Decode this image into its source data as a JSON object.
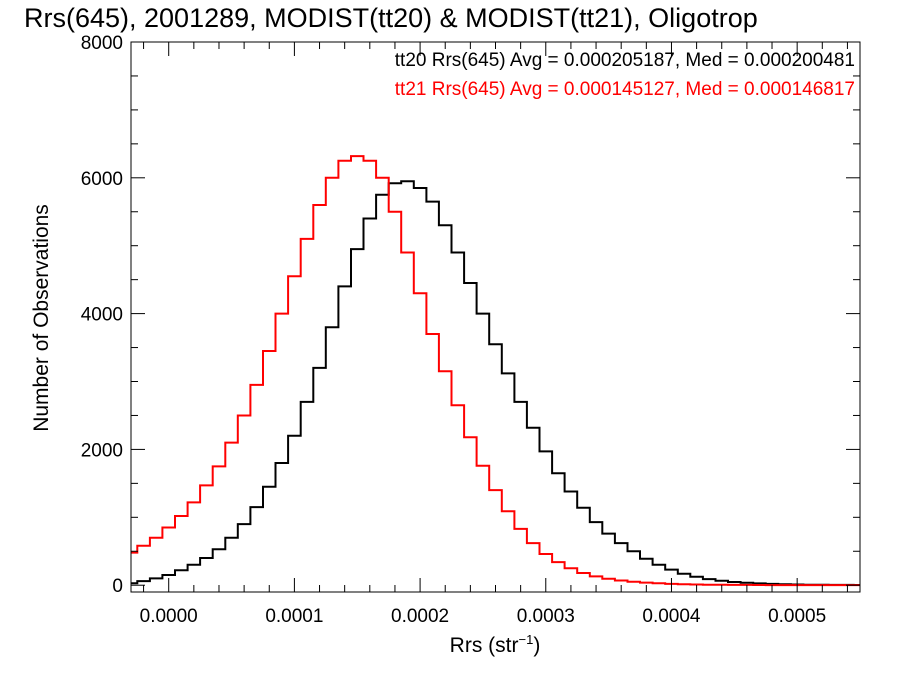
{
  "chart_data": {
    "type": "line",
    "title": "Rrs(645), 2001289, MODIST(tt20) & MODIST(tt21), Oligotrop",
    "xlabel": "Rrs (str",
    "xlabel_sup": "−1",
    "xlabel_close": ")",
    "ylabel": "Number of Observations",
    "xlim": [
      -3e-05,
      0.00055
    ],
    "ylim": [
      -100,
      8000
    ],
    "xticks": [
      0.0,
      0.0001,
      0.0002,
      0.0003,
      0.0004,
      0.0005
    ],
    "xtick_labels": [
      "0.0000",
      "0.0001",
      "0.0002",
      "0.0003",
      "0.0004",
      "0.0005"
    ],
    "yticks": [
      0,
      2000,
      4000,
      6000,
      8000
    ],
    "ytick_labels": [
      "0",
      "2000",
      "4000",
      "6000",
      "8000"
    ],
    "style": "histogram-step",
    "legend_placement": "top-right",
    "series": [
      {
        "name": "tt20",
        "label": "tt20 Rrs(645) Avg = 0.000205187, Med = 0.000200481",
        "color": "#000000",
        "x": [
          -3e-05,
          -2e-05,
          -1e-05,
          0.0,
          1e-05,
          2e-05,
          3e-05,
          4e-05,
          5e-05,
          6e-05,
          7e-05,
          8e-05,
          9e-05,
          0.0001,
          0.00011,
          0.00012,
          0.00013,
          0.00014,
          0.00015,
          0.00016,
          0.00017,
          0.00018,
          0.00019,
          0.0002,
          0.00021,
          0.00022,
          0.00023,
          0.00024,
          0.00025,
          0.00026,
          0.00027,
          0.00028,
          0.00029,
          0.0003,
          0.00031,
          0.00032,
          0.00033,
          0.00034,
          0.00035,
          0.00036,
          0.00037,
          0.00038,
          0.00039,
          0.0004,
          0.00041,
          0.00042,
          0.00043,
          0.00044,
          0.00045,
          0.00046,
          0.00047,
          0.00048,
          0.00049,
          0.0005,
          0.00051,
          0.00052,
          0.00053,
          0.00054,
          0.00055
        ],
        "y": [
          30,
          60,
          100,
          150,
          220,
          300,
          400,
          530,
          700,
          900,
          1150,
          1450,
          1800,
          2200,
          2700,
          3200,
          3800,
          4400,
          4950,
          5400,
          5750,
          5920,
          5950,
          5850,
          5650,
          5300,
          4900,
          4450,
          4000,
          3550,
          3120,
          2700,
          2320,
          1970,
          1650,
          1380,
          1140,
          930,
          760,
          620,
          500,
          390,
          300,
          230,
          170,
          125,
          90,
          65,
          48,
          36,
          26,
          19,
          14,
          10,
          8,
          6,
          5,
          4,
          3
        ]
      },
      {
        "name": "tt21",
        "label": "tt21 Rrs(645) Avg = 0.000145127, Med = 0.000146817",
        "color": "#ff0000",
        "x": [
          -3e-05,
          -2e-05,
          -1e-05,
          0.0,
          1e-05,
          2e-05,
          3e-05,
          4e-05,
          5e-05,
          6e-05,
          7e-05,
          8e-05,
          9e-05,
          0.0001,
          0.00011,
          0.00012,
          0.00013,
          0.00014,
          0.00015,
          0.00016,
          0.00017,
          0.00018,
          0.00019,
          0.0002,
          0.00021,
          0.00022,
          0.00023,
          0.00024,
          0.00025,
          0.00026,
          0.00027,
          0.00028,
          0.00029,
          0.0003,
          0.00031,
          0.00032,
          0.00033,
          0.00034,
          0.00035,
          0.00036,
          0.00037,
          0.00038,
          0.00039,
          0.0004,
          0.00041,
          0.00042,
          0.00043,
          0.00044,
          0.00045,
          0.00046,
          0.00047,
          0.00048,
          0.00049,
          0.0005,
          0.00051,
          0.00052,
          0.00053,
          0.00054,
          0.00055
        ],
        "y": [
          480,
          580,
          700,
          850,
          1020,
          1220,
          1470,
          1750,
          2100,
          2500,
          2950,
          3450,
          4000,
          4550,
          5100,
          5600,
          6000,
          6250,
          6320,
          6250,
          6000,
          5500,
          4900,
          4300,
          3700,
          3150,
          2650,
          2180,
          1760,
          1400,
          1090,
          830,
          620,
          460,
          340,
          250,
          180,
          130,
          95,
          70,
          52,
          38,
          28,
          20,
          15,
          11,
          8,
          6,
          5,
          4,
          3,
          2,
          2,
          1,
          1,
          1,
          1,
          1,
          1
        ]
      }
    ]
  }
}
